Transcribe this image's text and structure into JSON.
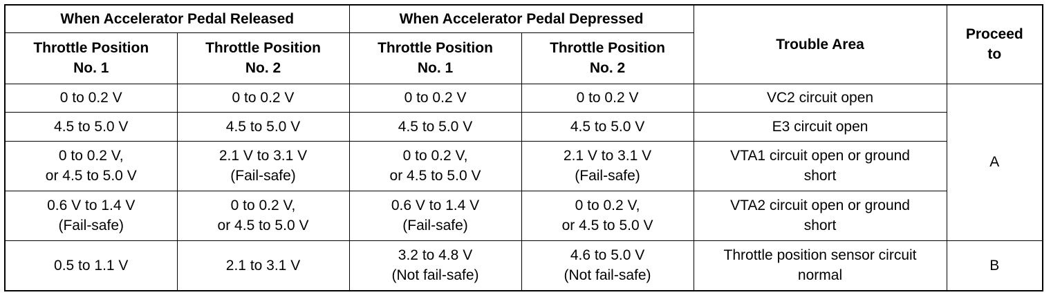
{
  "table": {
    "headers": {
      "released_group": "When Accelerator Pedal Released",
      "depressed_group": "When Accelerator Pedal Depressed",
      "trouble_area": "Trouble Area",
      "proceed_to": [
        "Proceed",
        "to"
      ],
      "tp1": [
        "Throttle Position",
        "No. 1"
      ],
      "tp2": [
        "Throttle Position",
        "No. 2"
      ]
    },
    "rows": [
      {
        "released_tp1": [
          "0 to 0.2 V"
        ],
        "released_tp2": [
          "0 to 0.2 V"
        ],
        "depressed_tp1": [
          "0 to 0.2 V"
        ],
        "depressed_tp2": [
          "0 to 0.2 V"
        ],
        "trouble_area": [
          "VC2 circuit open"
        ]
      },
      {
        "released_tp1": [
          "4.5 to 5.0 V"
        ],
        "released_tp2": [
          "4.5 to 5.0 V"
        ],
        "depressed_tp1": [
          "4.5 to 5.0 V"
        ],
        "depressed_tp2": [
          "4.5 to 5.0 V"
        ],
        "trouble_area": [
          "E3 circuit open"
        ]
      },
      {
        "released_tp1": [
          "0 to 0.2 V,",
          "or 4.5 to 5.0 V"
        ],
        "released_tp2": [
          "2.1 V to 3.1 V",
          "(Fail-safe)"
        ],
        "depressed_tp1": [
          "0 to 0.2 V,",
          "or 4.5 to 5.0 V"
        ],
        "depressed_tp2": [
          "2.1 V to 3.1 V",
          "(Fail-safe)"
        ],
        "trouble_area": [
          "VTA1 circuit open or ground",
          "short"
        ]
      },
      {
        "released_tp1": [
          "0.6 V to 1.4 V",
          "(Fail-safe)"
        ],
        "released_tp2": [
          "0 to 0.2 V,",
          "or 4.5 to 5.0 V"
        ],
        "depressed_tp1": [
          "0.6 V to 1.4 V",
          "(Fail-safe)"
        ],
        "depressed_tp2": [
          "0 to 0.2 V,",
          "or 4.5 to 5.0 V"
        ],
        "trouble_area": [
          "VTA2 circuit open or ground",
          "short"
        ]
      },
      {
        "released_tp1": [
          "0.5 to 1.1 V"
        ],
        "released_tp2": [
          "2.1 to 3.1 V"
        ],
        "depressed_tp1": [
          "3.2 to 4.8 V",
          "(Not fail-safe)"
        ],
        "depressed_tp2": [
          "4.6 to 5.0 V",
          "(Not fail-safe)"
        ],
        "trouble_area": [
          "Throttle position sensor circuit",
          "normal"
        ]
      }
    ],
    "proceed_values": {
      "group_a": "A",
      "group_b": "B"
    }
  }
}
